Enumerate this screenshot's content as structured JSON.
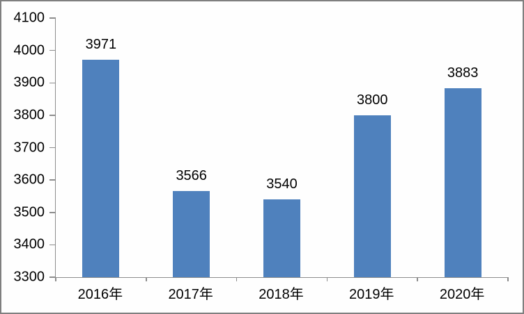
{
  "chart_data": {
    "type": "bar",
    "categories": [
      "2016年",
      "2017年",
      "2018年",
      "2019年",
      "2020年"
    ],
    "values": [
      3971,
      3566,
      3540,
      3800,
      3883
    ],
    "data_labels": [
      3971,
      3566,
      3540,
      3800,
      3883
    ],
    "title": "",
    "xlabel": "",
    "ylabel": "",
    "ylim": [
      3300,
      4100
    ],
    "ytick_step": 100,
    "yticks": [
      3300,
      3400,
      3500,
      3600,
      3700,
      3800,
      3900,
      4000,
      4100
    ],
    "grid": false,
    "legend": false,
    "bar_color": "#4f81bd",
    "axis_color": "#8c8c8c",
    "text_color": "#000000",
    "frame_border_color": "#7f7f7f",
    "background_color": "#fefefe"
  }
}
